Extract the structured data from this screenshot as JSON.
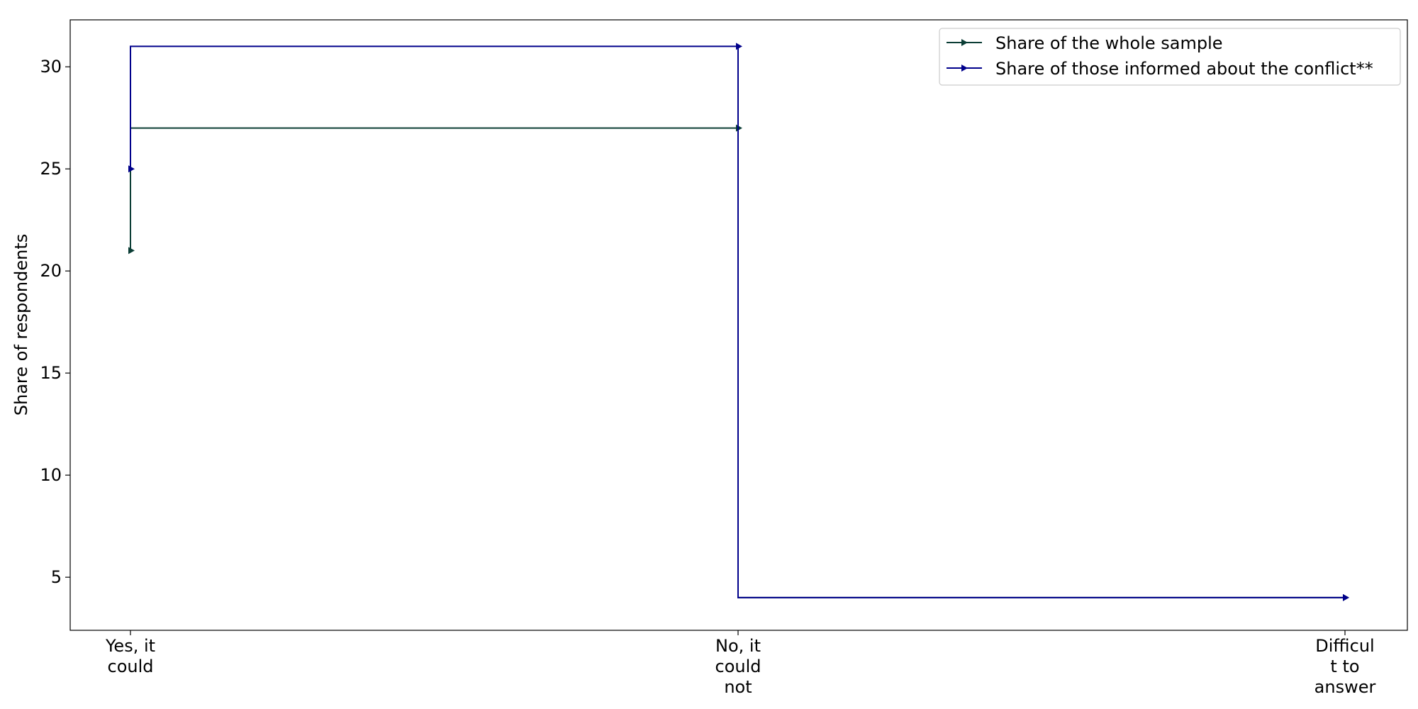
{
  "chart_data": {
    "type": "line",
    "drawstyle": "steps-pre",
    "categories": [
      "Yes, it could",
      "No, it could not",
      "Difficult to answer"
    ],
    "category_tick_lines": [
      [
        "Yes, it",
        "could"
      ],
      [
        "No, it",
        "could",
        "not"
      ],
      [
        "Difficul",
        "t to",
        "answer"
      ]
    ],
    "ylabel": "Share of respondents",
    "xlabel": "",
    "ylim": [
      2.4,
      32.3
    ],
    "yticks": [
      5,
      10,
      15,
      20,
      25,
      30
    ],
    "grid": false,
    "legend_position": "upper right",
    "series": [
      {
        "name": "Share of the whole sample",
        "values": [
          21,
          27,
          4
        ],
        "color": "#0b3d35",
        "marker": "triangle-right"
      },
      {
        "name": "Share of those informed about the conflict**",
        "values": [
          25,
          31,
          4
        ],
        "color": "#00008b",
        "marker": "triangle-right"
      }
    ]
  }
}
